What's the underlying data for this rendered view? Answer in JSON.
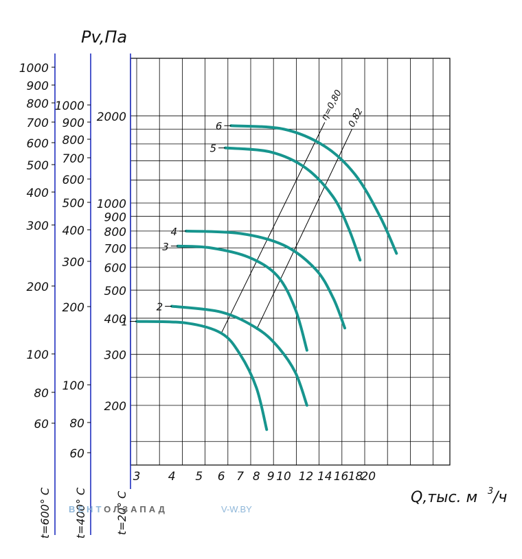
{
  "chart_data": {
    "type": "line",
    "ylabel": "Pv,Па",
    "xlabel": "Q,тыс. м³/ч",
    "x_axis": {
      "scale": "log",
      "range": [
        3,
        30
      ],
      "ticks": [
        3,
        4,
        5,
        6,
        7,
        8,
        9,
        10,
        12,
        14,
        16,
        18,
        20
      ],
      "tick_labels": [
        "3",
        "4",
        "5",
        "6",
        "7",
        "8",
        "9",
        "10",
        "12",
        "14",
        "16",
        "18",
        "20"
      ],
      "unit_label": "Q,тыс. м",
      "unit_sup": "3",
      "unit_tail": "/ч"
    },
    "y_axes": [
      {
        "name": "t=20° C",
        "scale": "log",
        "ticks": [
          200,
          300,
          400,
          500,
          600,
          700,
          800,
          900,
          1000,
          2000
        ],
        "tick_labels": [
          "200",
          "300",
          "400",
          "500",
          "600",
          "700",
          "800",
          "900",
          "1000",
          "2000"
        ]
      },
      {
        "name": "t=400° C",
        "scale": "log",
        "ticks": [
          60,
          80,
          100,
          200,
          300,
          400,
          500,
          600,
          700,
          800,
          900,
          1000
        ],
        "tick_labels": [
          "60",
          "80",
          "100",
          "200",
          "300",
          "400",
          "500",
          "600",
          "700",
          "800",
          "900",
          "1000"
        ]
      },
      {
        "name": "t=600° C",
        "scale": "log",
        "ticks": [
          60,
          80,
          100,
          200,
          300,
          400,
          500,
          600,
          700,
          800,
          900,
          1000
        ],
        "tick_labels": [
          "60",
          "80",
          "100",
          "200",
          "300",
          "400",
          "500",
          "600",
          "700",
          "800",
          "900",
          "1000"
        ]
      }
    ],
    "grid": true,
    "series": [
      {
        "name": "1",
        "points": [
          [
            3,
            390
          ],
          [
            4.5,
            385
          ],
          [
            6,
            355
          ],
          [
            7,
            300
          ],
          [
            8,
            230
          ],
          [
            8.7,
            165
          ]
        ]
      },
      {
        "name": "2",
        "points": [
          [
            4,
            440
          ],
          [
            6,
            420
          ],
          [
            8,
            370
          ],
          [
            9.5,
            320
          ],
          [
            11,
            260
          ],
          [
            12.1,
            200
          ]
        ]
      },
      {
        "name": "3",
        "points": [
          [
            4.2,
            710
          ],
          [
            5.5,
            700
          ],
          [
            7.5,
            650
          ],
          [
            9.5,
            560
          ],
          [
            11,
            430
          ],
          [
            12.1,
            310
          ]
        ]
      },
      {
        "name": "4",
        "points": [
          [
            4.5,
            800
          ],
          [
            7,
            785
          ],
          [
            10,
            715
          ],
          [
            13,
            590
          ],
          [
            15,
            470
          ],
          [
            16.5,
            370
          ]
        ]
      },
      {
        "name": "5",
        "points": [
          [
            6.2,
            1550
          ],
          [
            9,
            1500
          ],
          [
            12,
            1320
          ],
          [
            15,
            1050
          ],
          [
            17,
            820
          ],
          [
            18.7,
            635
          ]
        ]
      },
      {
        "name": "6",
        "points": [
          [
            6.5,
            1850
          ],
          [
            10,
            1800
          ],
          [
            14,
            1570
          ],
          [
            18,
            1250
          ],
          [
            22,
            900
          ],
          [
            25.2,
            670
          ]
        ]
      }
    ],
    "efficiency_lines": [
      {
        "label": "η=0,80",
        "points": [
          [
            6,
            355
          ],
          [
            14,
            1900
          ]
        ]
      },
      {
        "label": "0,82",
        "points": [
          [
            8,
            365
          ],
          [
            17.5,
            1800
          ]
        ]
      }
    ]
  },
  "watermark": {
    "brand_a": "ВЕНТ",
    "brand_b": "ОЛЗАПАД",
    "site": "V-W.BY"
  },
  "colors": {
    "curve": "#17958e",
    "grid": "#000000",
    "axis": "#1f2fbf"
  }
}
